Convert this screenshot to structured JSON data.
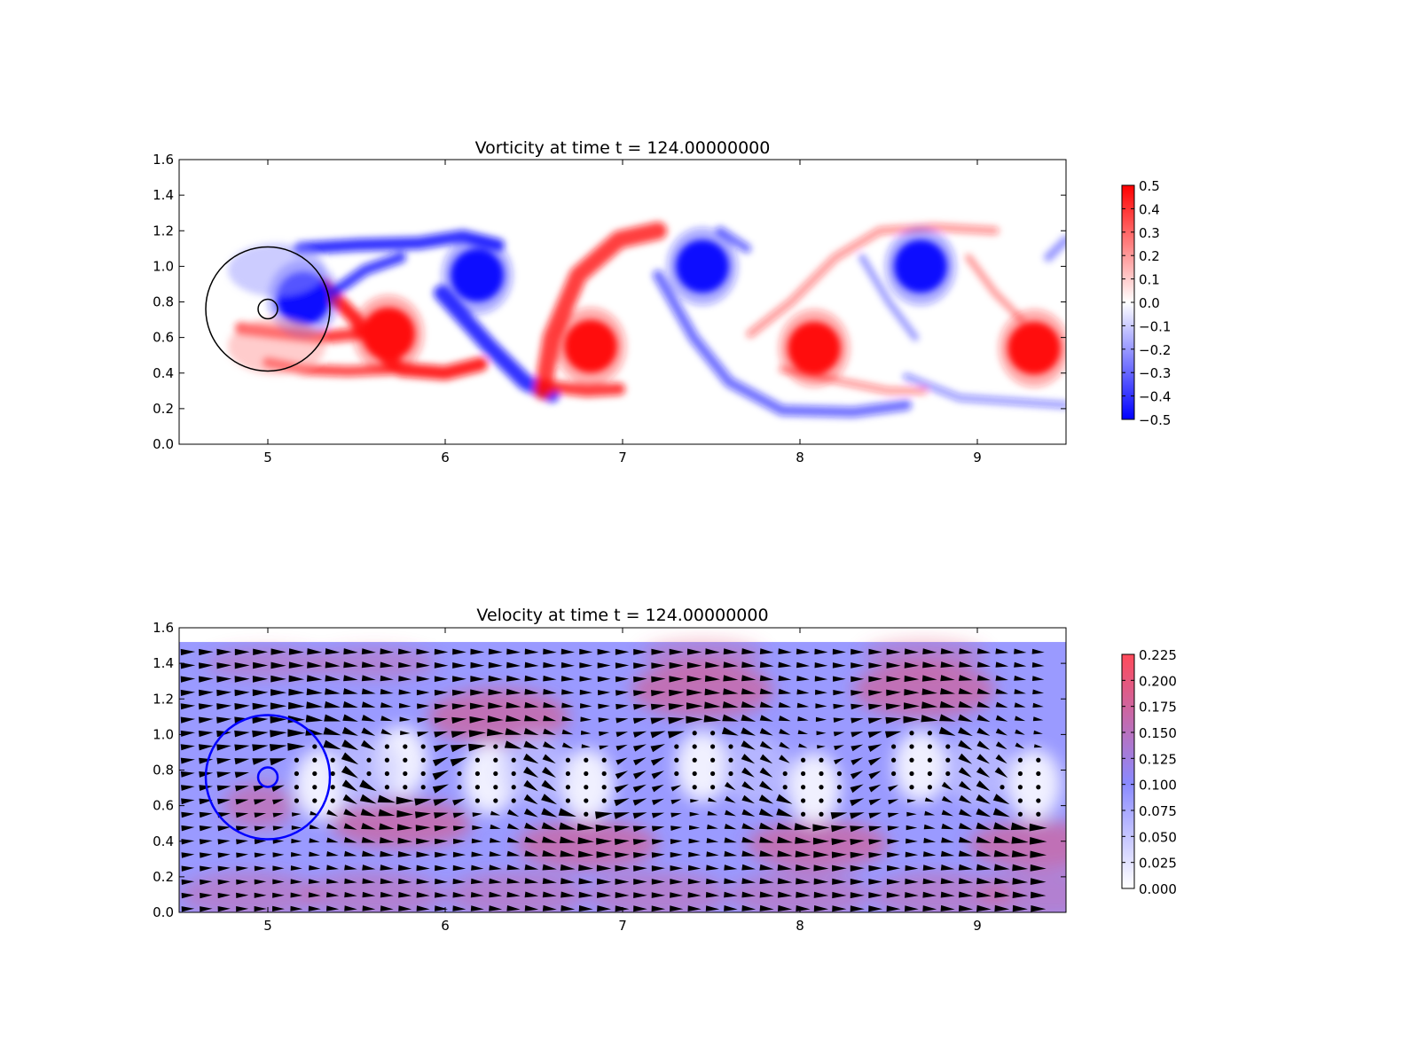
{
  "chart_data": [
    {
      "type": "heatmap",
      "title": "Vorticity at time t =   124.00000000",
      "xlabel": "",
      "ylabel": "",
      "xlim": [
        4.5,
        9.5
      ],
      "ylim": [
        0.0,
        1.6
      ],
      "x_ticks": [
        "5",
        "6",
        "7",
        "8",
        "9"
      ],
      "y_ticks": [
        "0.0",
        "0.2",
        "0.4",
        "0.6",
        "0.8",
        "1.0",
        "1.2",
        "1.4",
        "1.6"
      ],
      "colorbar": {
        "range": [
          -0.5,
          0.5
        ],
        "colormap": "bwr",
        "ticks": [
          "0.5",
          "0.4",
          "0.3",
          "0.2",
          "0.1",
          "0.0",
          "−0.1",
          "−0.2",
          "−0.3",
          "−0.4",
          "−0.5"
        ]
      },
      "vortices": [
        {
          "x": 5.2,
          "y": 0.82,
          "sign": -1
        },
        {
          "x": 5.68,
          "y": 0.62,
          "sign": 1
        },
        {
          "x": 6.18,
          "y": 0.95,
          "sign": -1
        },
        {
          "x": 6.82,
          "y": 0.55,
          "sign": 1
        },
        {
          "x": 7.45,
          "y": 1.0,
          "sign": -1
        },
        {
          "x": 8.08,
          "y": 0.54,
          "sign": 1
        },
        {
          "x": 8.68,
          "y": 1.0,
          "sign": -1
        },
        {
          "x": 9.32,
          "y": 0.54,
          "sign": 1
        }
      ],
      "circles": [
        {
          "cx": 5.0,
          "cy": 0.76,
          "r": 0.35,
          "color": "#000000"
        },
        {
          "cx": 5.0,
          "cy": 0.76,
          "r": 0.055,
          "color": "#000000"
        }
      ]
    },
    {
      "type": "heatmap",
      "title": "Velocity at time t =   124.00000000",
      "xlabel": "",
      "ylabel": "",
      "xlim": [
        4.5,
        9.5
      ],
      "ylim": [
        0.0,
        1.6
      ],
      "x_ticks": [
        "5",
        "6",
        "7",
        "8",
        "9"
      ],
      "y_ticks": [
        "0.0",
        "0.2",
        "0.4",
        "0.6",
        "0.8",
        "1.0",
        "1.2",
        "1.4",
        "1.6"
      ],
      "field_top": 1.52,
      "overlay": "quiver",
      "colorbar": {
        "range": [
          0.0,
          0.225
        ],
        "ticks": [
          "0.225",
          "0.200",
          "0.175",
          "0.150",
          "0.125",
          "0.100",
          "0.075",
          "0.050",
          "0.025",
          "0.000"
        ],
        "colors": [
          "#ffffff",
          "#8a8aff",
          "#ff4a5a"
        ]
      },
      "circles": [
        {
          "cx": 5.0,
          "cy": 0.76,
          "r": 0.35,
          "color": "#0000ff"
        },
        {
          "cx": 5.0,
          "cy": 0.76,
          "r": 0.055,
          "color": "#0000ff"
        }
      ]
    }
  ]
}
